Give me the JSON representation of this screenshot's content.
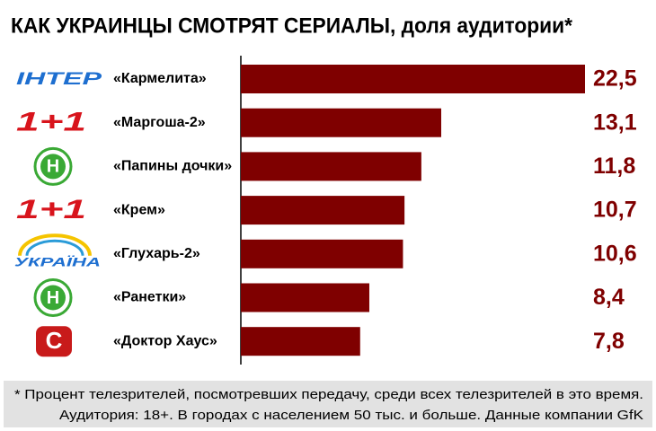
{
  "chart_data": {
    "type": "bar",
    "orientation": "horizontal",
    "title": "КАК УКРАИНЦЫ СМОТРЯТ СЕРИАЛЫ, доля аудитории*",
    "channels": [
      "ІНТЕР",
      "1+1",
      "Н",
      "1+1",
      "УКРАЇНА",
      "Н",
      "С"
    ],
    "categories": [
      "«Кармелита»",
      "«Маргоша-2»",
      "«Папины дочки»",
      "«Крем»",
      "«Глухарь-2»",
      "«Ранетки»",
      "«Доктор Хаус»"
    ],
    "values": [
      22.5,
      13.1,
      11.8,
      10.7,
      10.6,
      8.4,
      7.8
    ],
    "value_labels": [
      "22,5",
      "13,1",
      "11,8",
      "10,7",
      "10,6",
      "8,4",
      "7,8"
    ],
    "color": "#7f0000",
    "footnote": [
      "* Процент телезрителей, посмотревших передачу, среди всех телезрителей в это время.",
      "Аудитория: 18+.  В городах с населением 50 тыс. и больше. Данные компании GfK"
    ]
  }
}
